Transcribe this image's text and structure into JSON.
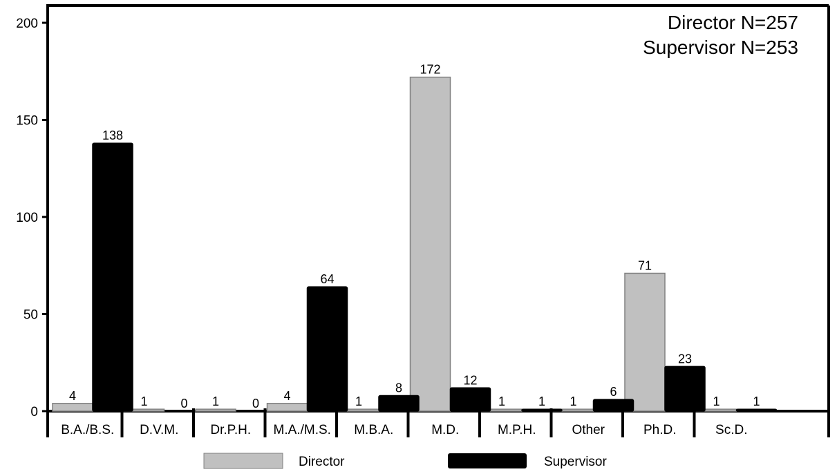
{
  "chart_data": {
    "type": "bar",
    "categories": [
      "B.A./B.S.",
      "D.V.M.",
      "Dr.P.H.",
      "M.A./M.S.",
      "M.B.A.",
      "M.D.",
      "M.P.H.",
      "Other",
      "Ph.D.",
      "Sc.D."
    ],
    "series": [
      {
        "name": "Director",
        "values": [
          4,
          1,
          1,
          4,
          1,
          172,
          1,
          1,
          71,
          1
        ],
        "labels": [
          "4",
          "1",
          "1",
          "4",
          "1",
          "172",
          "1",
          "1",
          "71",
          "1"
        ],
        "color": "#c0c0c0"
      },
      {
        "name": "Supervisor",
        "values": [
          138,
          0,
          0,
          64,
          8,
          12,
          1,
          6,
          23,
          1
        ],
        "labels": [
          "138",
          "0",
          "0",
          "64",
          "8",
          "12",
          "1",
          "6",
          "23",
          "1"
        ],
        "color": "#000000"
      }
    ],
    "annotations": [
      "Director N=257",
      "Supervisor N=253"
    ],
    "title": "",
    "xlabel": "",
    "ylabel": "",
    "ylim": [
      0,
      200
    ],
    "yticks": [
      "0",
      "50",
      "100",
      "150",
      "200"
    ],
    "grid": false,
    "legend": "bottom"
  }
}
